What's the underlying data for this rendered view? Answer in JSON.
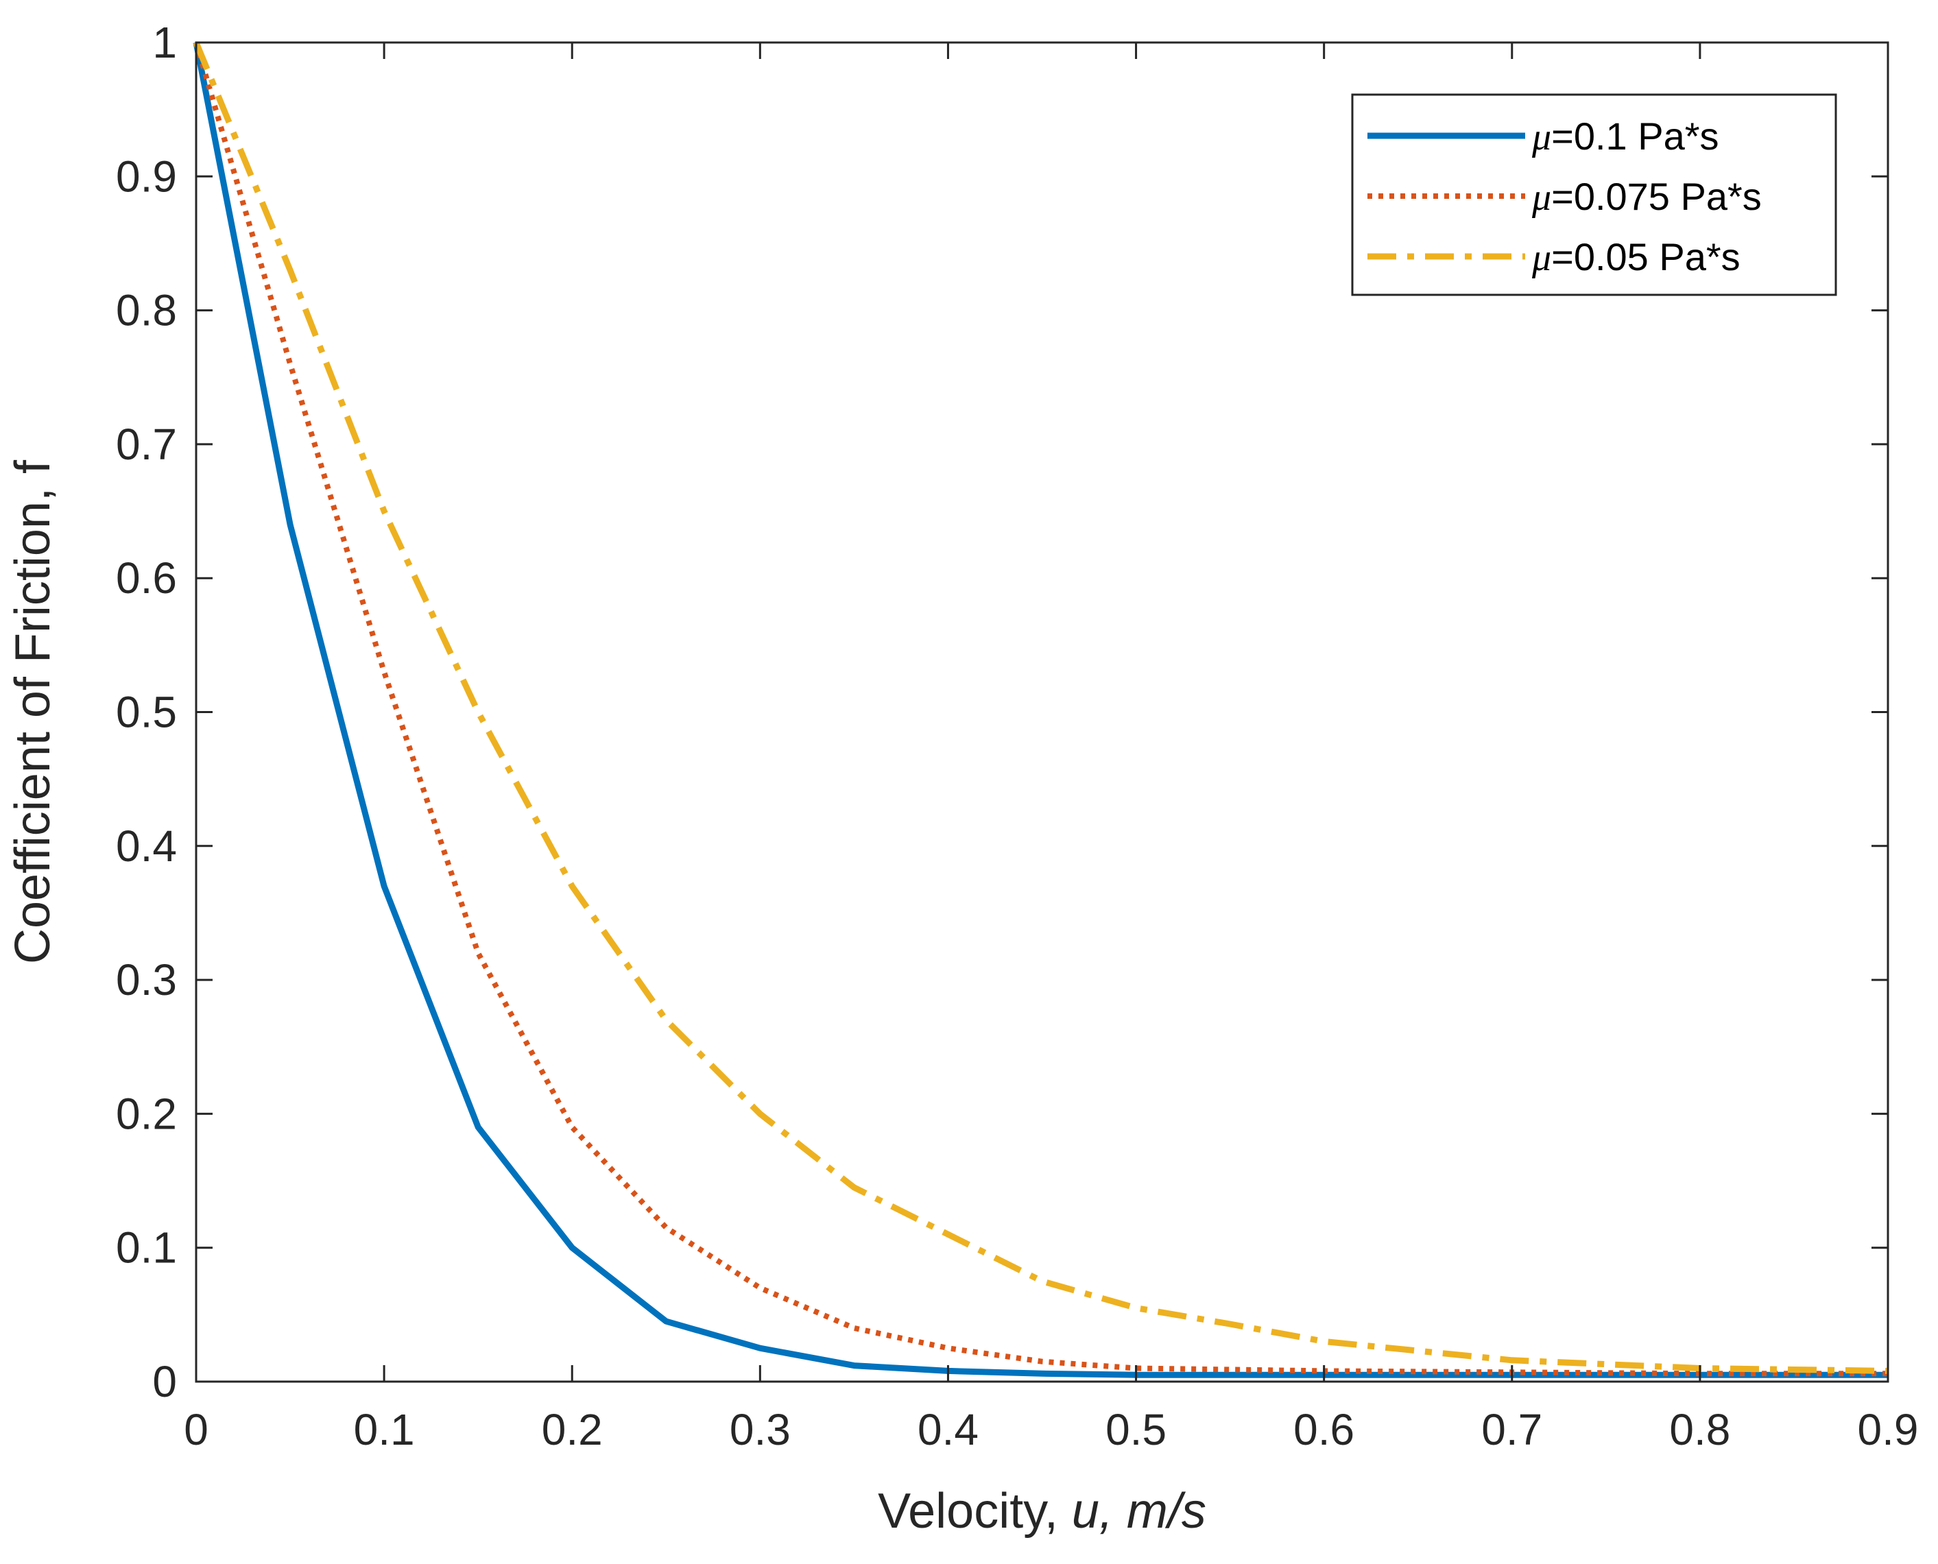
{
  "chart_data": {
    "type": "line",
    "title": "",
    "xlabel": "Velocity,  u, m/s",
    "xlabel_parts": {
      "prefix": "Velocity,  ",
      "var": "u",
      "unit": ", m/s"
    },
    "ylabel": "Coefficient of Friction, f",
    "xlim": [
      0,
      0.9
    ],
    "ylim": [
      0,
      1
    ],
    "xticks": [
      0,
      0.1,
      0.2,
      0.3,
      0.4,
      0.5,
      0.6,
      0.7,
      0.8,
      0.9
    ],
    "xtick_labels": [
      "0",
      "0.1",
      "0.2",
      "0.3",
      "0.4",
      "0.5",
      "0.6",
      "0.7",
      "0.8",
      "0.9"
    ],
    "yticks": [
      0,
      0.1,
      0.2,
      0.3,
      0.4,
      0.5,
      0.6,
      0.7,
      0.8,
      0.9,
      1
    ],
    "ytick_labels": [
      "0",
      "0.1",
      "0.2",
      "0.3",
      "0.4",
      "0.5",
      "0.6",
      "0.7",
      "0.8",
      "0.9",
      "1"
    ],
    "grid": false,
    "legend_position": "top-right",
    "series": [
      {
        "name": "μ=0.1 Pa*s",
        "symbol": "μ",
        "label": "=0.1 Pa*s",
        "color": "#0072BD",
        "style": "solid",
        "x": [
          0,
          0.05,
          0.1,
          0.15,
          0.2,
          0.25,
          0.3,
          0.35,
          0.4,
          0.45,
          0.5,
          0.6,
          0.7,
          0.8,
          0.9
        ],
        "y": [
          1,
          0.64,
          0.37,
          0.19,
          0.1,
          0.045,
          0.025,
          0.012,
          0.008,
          0.006,
          0.005,
          0.005,
          0.005,
          0.005,
          0.005
        ]
      },
      {
        "name": "μ=0.075 Pa*s",
        "symbol": "μ",
        "label": "=0.075 Pa*s",
        "color": "#D95319",
        "style": "dotted",
        "x": [
          0,
          0.05,
          0.1,
          0.15,
          0.2,
          0.25,
          0.3,
          0.35,
          0.4,
          0.45,
          0.5,
          0.6,
          0.7,
          0.8,
          0.9
        ],
        "y": [
          1,
          0.76,
          0.53,
          0.32,
          0.19,
          0.115,
          0.07,
          0.04,
          0.025,
          0.015,
          0.01,
          0.008,
          0.007,
          0.006,
          0.006
        ]
      },
      {
        "name": "μ=0.05 Pa*s",
        "symbol": "μ",
        "label": "=0.05 Pa*s",
        "color": "#EDB120",
        "style": "dashdot",
        "x": [
          0,
          0.05,
          0.1,
          0.15,
          0.2,
          0.25,
          0.3,
          0.35,
          0.4,
          0.45,
          0.5,
          0.55,
          0.6,
          0.65,
          0.7,
          0.8,
          0.9
        ],
        "y": [
          1,
          0.83,
          0.65,
          0.5,
          0.37,
          0.27,
          0.2,
          0.145,
          0.11,
          0.075,
          0.055,
          0.043,
          0.03,
          0.023,
          0.016,
          0.01,
          0.008
        ]
      }
    ]
  }
}
